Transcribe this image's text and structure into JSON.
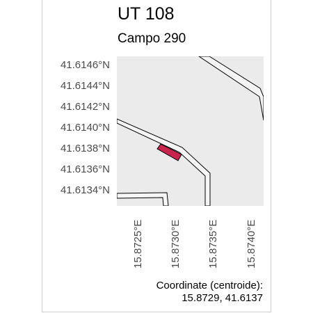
{
  "header": {
    "title": "UT 108",
    "subtitle": "Campo 290"
  },
  "axes": {
    "y_ticks": [
      "41.6146°N",
      "41.6144°N",
      "41.6142°N",
      "41.6140°N",
      "41.6138°N",
      "41.6136°N",
      "41.6134°N"
    ],
    "x_ticks": [
      "15.8725°E",
      "15.8730°E",
      "15.8735°E",
      "15.8740°E"
    ]
  },
  "map": {
    "background_color": "#ebebeb",
    "road_fill_color": "#f5f5f5",
    "road_stroke_color": "#000000",
    "parcel_color": "#c7254e",
    "parcel_stroke_color": "#000000"
  },
  "footer": {
    "coord_label": "Coordinate (centroide):",
    "coord_value": "15.8729, 41.6137"
  }
}
